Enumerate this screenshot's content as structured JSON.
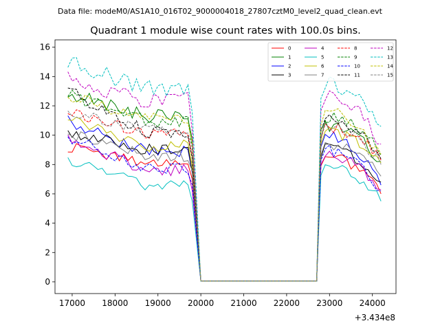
{
  "suptitle": "Data file: modeM0/AS1A10_016T02_9000004018_27807cztM0_level2_quad_clean.evt",
  "chart_data": {
    "type": "line",
    "title": "Quadrant 1 module wise count rates with 100.0s bins.",
    "xlabel": "",
    "ylabel": "",
    "x_offset_label": "+3.434e8",
    "xlim": [
      16600,
      24550
    ],
    "ylim": [
      -0.8,
      16.5
    ],
    "x_ticks": [
      17000,
      18000,
      19000,
      20000,
      21000,
      22000,
      23000,
      24000
    ],
    "x_tick_labels": [
      "17000",
      "18000",
      "19000",
      "20000",
      "21000",
      "22000",
      "23000",
      "24000"
    ],
    "y_ticks": [
      0,
      2,
      4,
      6,
      8,
      10,
      12,
      14,
      16
    ],
    "y_tick_labels": [
      "0",
      "2",
      "4",
      "6",
      "8",
      "10",
      "12",
      "14",
      "16"
    ],
    "legend_position": "top-right",
    "segments": [
      {
        "x_start": 16900,
        "x_step": 100,
        "count": 30
      },
      {
        "x_start": 20000,
        "x_step": 2700,
        "count": 2
      },
      {
        "x_start": 22800,
        "x_step": 100,
        "count": 15
      }
    ],
    "series": [
      {
        "name": "0",
        "color": "#ff0000",
        "dash": "solid",
        "level": 8.1,
        "trend_a": 9.2,
        "trend_b": 8.6,
        "noise": 0.35,
        "end": 6.0
      },
      {
        "name": "1",
        "color": "#008000",
        "dash": "solid",
        "level": 11.3,
        "trend_a": 12.9,
        "trend_b": 10.6,
        "noise": 0.45,
        "end": 8.2
      },
      {
        "name": "2",
        "color": "#0000ff",
        "dash": "solid",
        "level": 8.9,
        "trend_a": 10.9,
        "trend_b": 10.0,
        "noise": 0.45,
        "end": 6.6
      },
      {
        "name": "3",
        "color": "#000000",
        "dash": "solid",
        "level": 9.0,
        "trend_a": 10.3,
        "trend_b": 9.2,
        "noise": 0.4,
        "end": 6.8
      },
      {
        "name": "4",
        "color": "#bf00bf",
        "dash": "solid",
        "level": 7.6,
        "trend_a": 9.9,
        "trend_b": 8.7,
        "noise": 0.4,
        "end": 6.3
      },
      {
        "name": "5",
        "color": "#00bfbf",
        "dash": "solid",
        "level": 6.6,
        "trend_a": 8.3,
        "trend_b": 7.9,
        "noise": 0.35,
        "end": 5.5
      },
      {
        "name": "6",
        "color": "#bfbf00",
        "dash": "solid",
        "level": 9.3,
        "trend_a": 11.1,
        "trend_b": 10.2,
        "noise": 0.4,
        "end": 8.1
      },
      {
        "name": "7",
        "color": "#808080",
        "dash": "solid",
        "level": 8.6,
        "trend_a": 10.1,
        "trend_b": 9.4,
        "noise": 0.4,
        "end": 7.2
      },
      {
        "name": "8",
        "color": "#ff0000",
        "dash": "dashed",
        "level": 10.1,
        "trend_a": 11.7,
        "trend_b": 10.6,
        "noise": 0.4,
        "end": 8.3
      },
      {
        "name": "9",
        "color": "#008000",
        "dash": "dashed",
        "level": 11.0,
        "trend_a": 12.8,
        "trend_b": 11.3,
        "noise": 0.45,
        "end": 8.6
      },
      {
        "name": "10",
        "color": "#0000ff",
        "dash": "dashed",
        "level": 7.7,
        "trend_a": 9.9,
        "trend_b": 9.0,
        "noise": 0.4,
        "end": 6.2
      },
      {
        "name": "11",
        "color": "#000000",
        "dash": "dashed",
        "level": 10.2,
        "trend_a": 13.1,
        "trend_b": 11.2,
        "noise": 0.45,
        "end": 8.4
      },
      {
        "name": "12",
        "color": "#bf00bf",
        "dash": "dashed",
        "level": 12.4,
        "trend_a": 13.8,
        "trend_b": 12.7,
        "noise": 0.55,
        "end": 9.4
      },
      {
        "name": "13",
        "color": "#00bfbf",
        "dash": "dashed",
        "level": 13.2,
        "trend_a": 15.0,
        "trend_b": 13.6,
        "noise": 0.55,
        "end": 10.6
      },
      {
        "name": "14",
        "color": "#bfbf00",
        "dash": "dashed",
        "level": 11.2,
        "trend_a": 12.6,
        "trend_b": 11.6,
        "noise": 0.45,
        "end": 8.7
      },
      {
        "name": "15",
        "color": "#808080",
        "dash": "dashed",
        "level": 10.4,
        "trend_a": 11.5,
        "trend_b": 10.7,
        "noise": 0.4,
        "end": 8.0
      }
    ]
  }
}
